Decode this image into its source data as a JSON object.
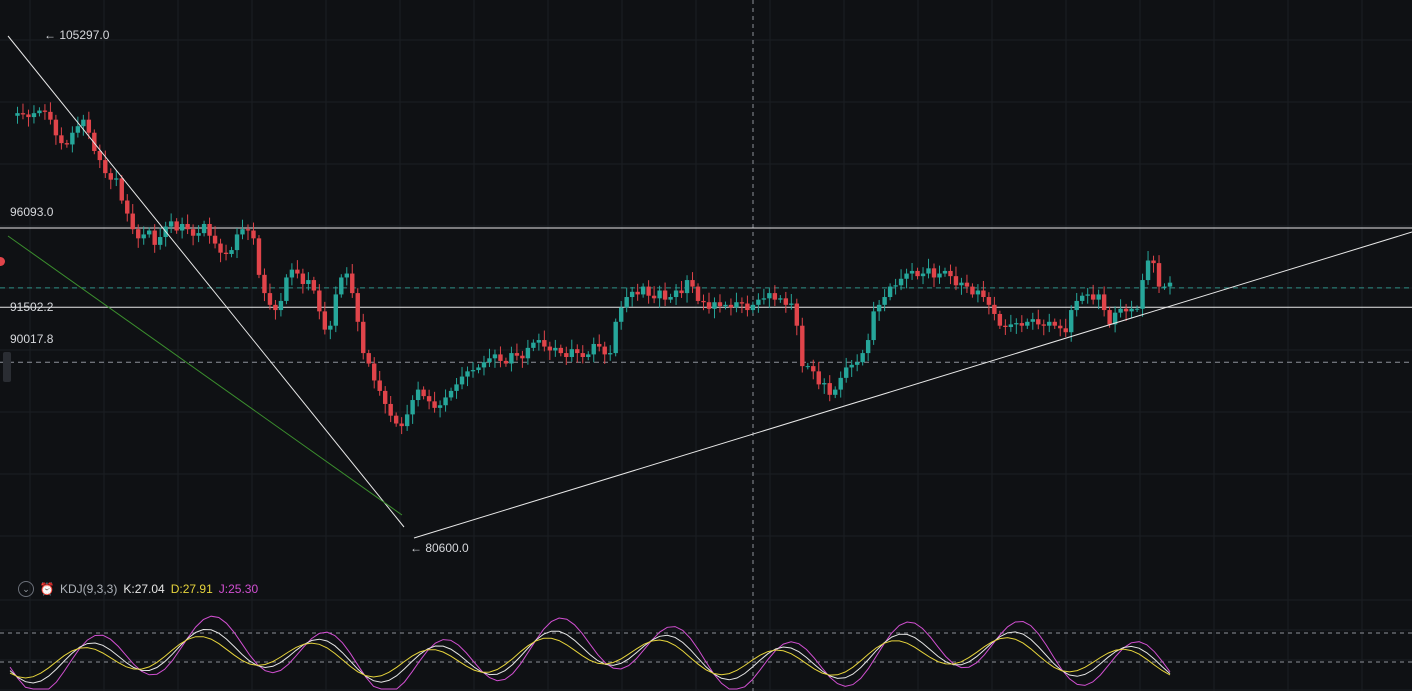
{
  "chart_data": {
    "type": "candlestick",
    "ylim": [
      79500,
      107000
    ],
    "grid": true,
    "price_labels": {
      "high_marker": "← 105297.0",
      "low_marker": "← 80600.0",
      "level_1": "96093.0",
      "level_2": "91502.2",
      "level_3": "90017.8"
    },
    "levels": [
      96093.0,
      91502.2,
      90017.8,
      85800.0
    ],
    "colors": {
      "up": "#26a69a",
      "down": "#e0444a",
      "k_line": "#e6e6e6",
      "d_line": "#e6d43c",
      "j_line": "#d14fd1",
      "trend_line": "#e8e8e8",
      "green_line": "#3b8f2e"
    }
  },
  "indicator": {
    "name": "KDJ(9,3,3)",
    "k_label": "K:27.04",
    "d_label": "D:27.91",
    "j_label": "J:25.30"
  }
}
